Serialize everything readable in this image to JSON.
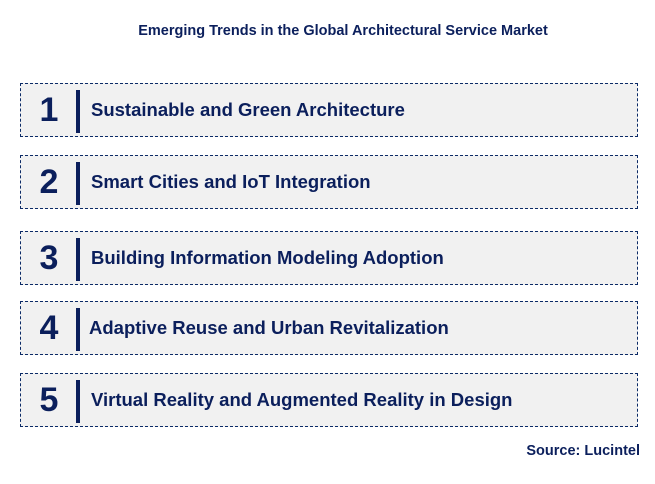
{
  "title": "Emerging Trends in the Global Architectural Service Market",
  "items": [
    {
      "number": "1",
      "label": "Sustainable and Green Architecture"
    },
    {
      "number": "2",
      "label": "Smart Cities and IoT Integration"
    },
    {
      "number": "3",
      "label": "Building Information Modeling Adoption"
    },
    {
      "number": "4",
      "label": "Adaptive Reuse and Urban Revitalization"
    },
    {
      "number": "5",
      "label": "Virtual Reality and Augmented Reality in Design"
    }
  ],
  "source": "Source: Lucintel",
  "colors": {
    "text": "#0b1f5c",
    "box_fill": "#f1f1f1",
    "border": "#0b2a66"
  }
}
